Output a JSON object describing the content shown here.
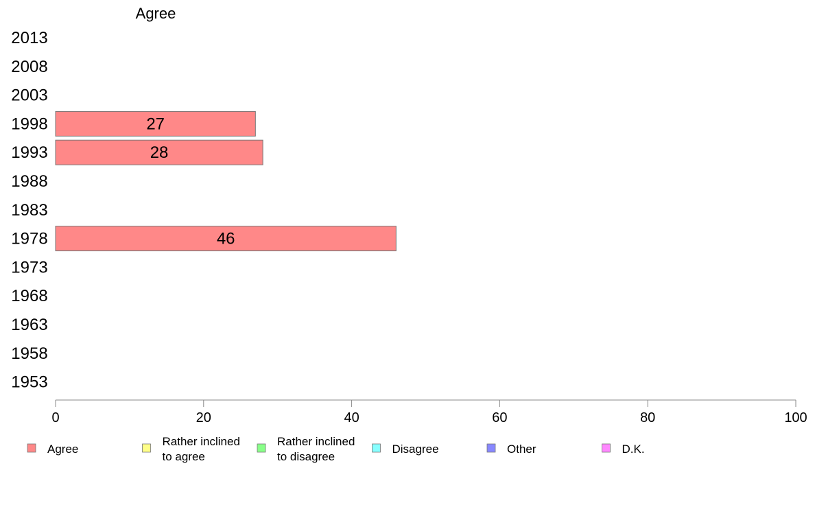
{
  "chart_data": {
    "type": "bar",
    "orientation": "horizontal",
    "title": "Agree",
    "categories": [
      "2013",
      "2008",
      "2003",
      "1998",
      "1993",
      "1988",
      "1983",
      "1978",
      "1973",
      "1968",
      "1963",
      "1958",
      "1953"
    ],
    "series": [
      {
        "name": "Agree",
        "color": "#ff8888",
        "values": [
          null,
          null,
          null,
          27,
          28,
          null,
          null,
          46,
          null,
          null,
          null,
          null,
          null
        ]
      }
    ],
    "xlim": [
      0,
      100
    ],
    "x_ticks": [
      "0",
      "20",
      "40",
      "60",
      "80",
      "100"
    ],
    "grid": false,
    "legend_position": "bottom",
    "legend": [
      {
        "lines": [
          "Agree"
        ],
        "color": "#ff8888"
      },
      {
        "lines": [
          "Rather inclined",
          "to agree"
        ],
        "color": "#ffff88"
      },
      {
        "lines": [
          "Rather inclined",
          "to disagree"
        ],
        "color": "#88ff88"
      },
      {
        "lines": [
          "Disagree"
        ],
        "color": "#88ffff"
      },
      {
        "lines": [
          "Other"
        ],
        "color": "#8888ff"
      },
      {
        "lines": [
          "D.K."
        ],
        "color": "#ff88ff"
      }
    ]
  }
}
